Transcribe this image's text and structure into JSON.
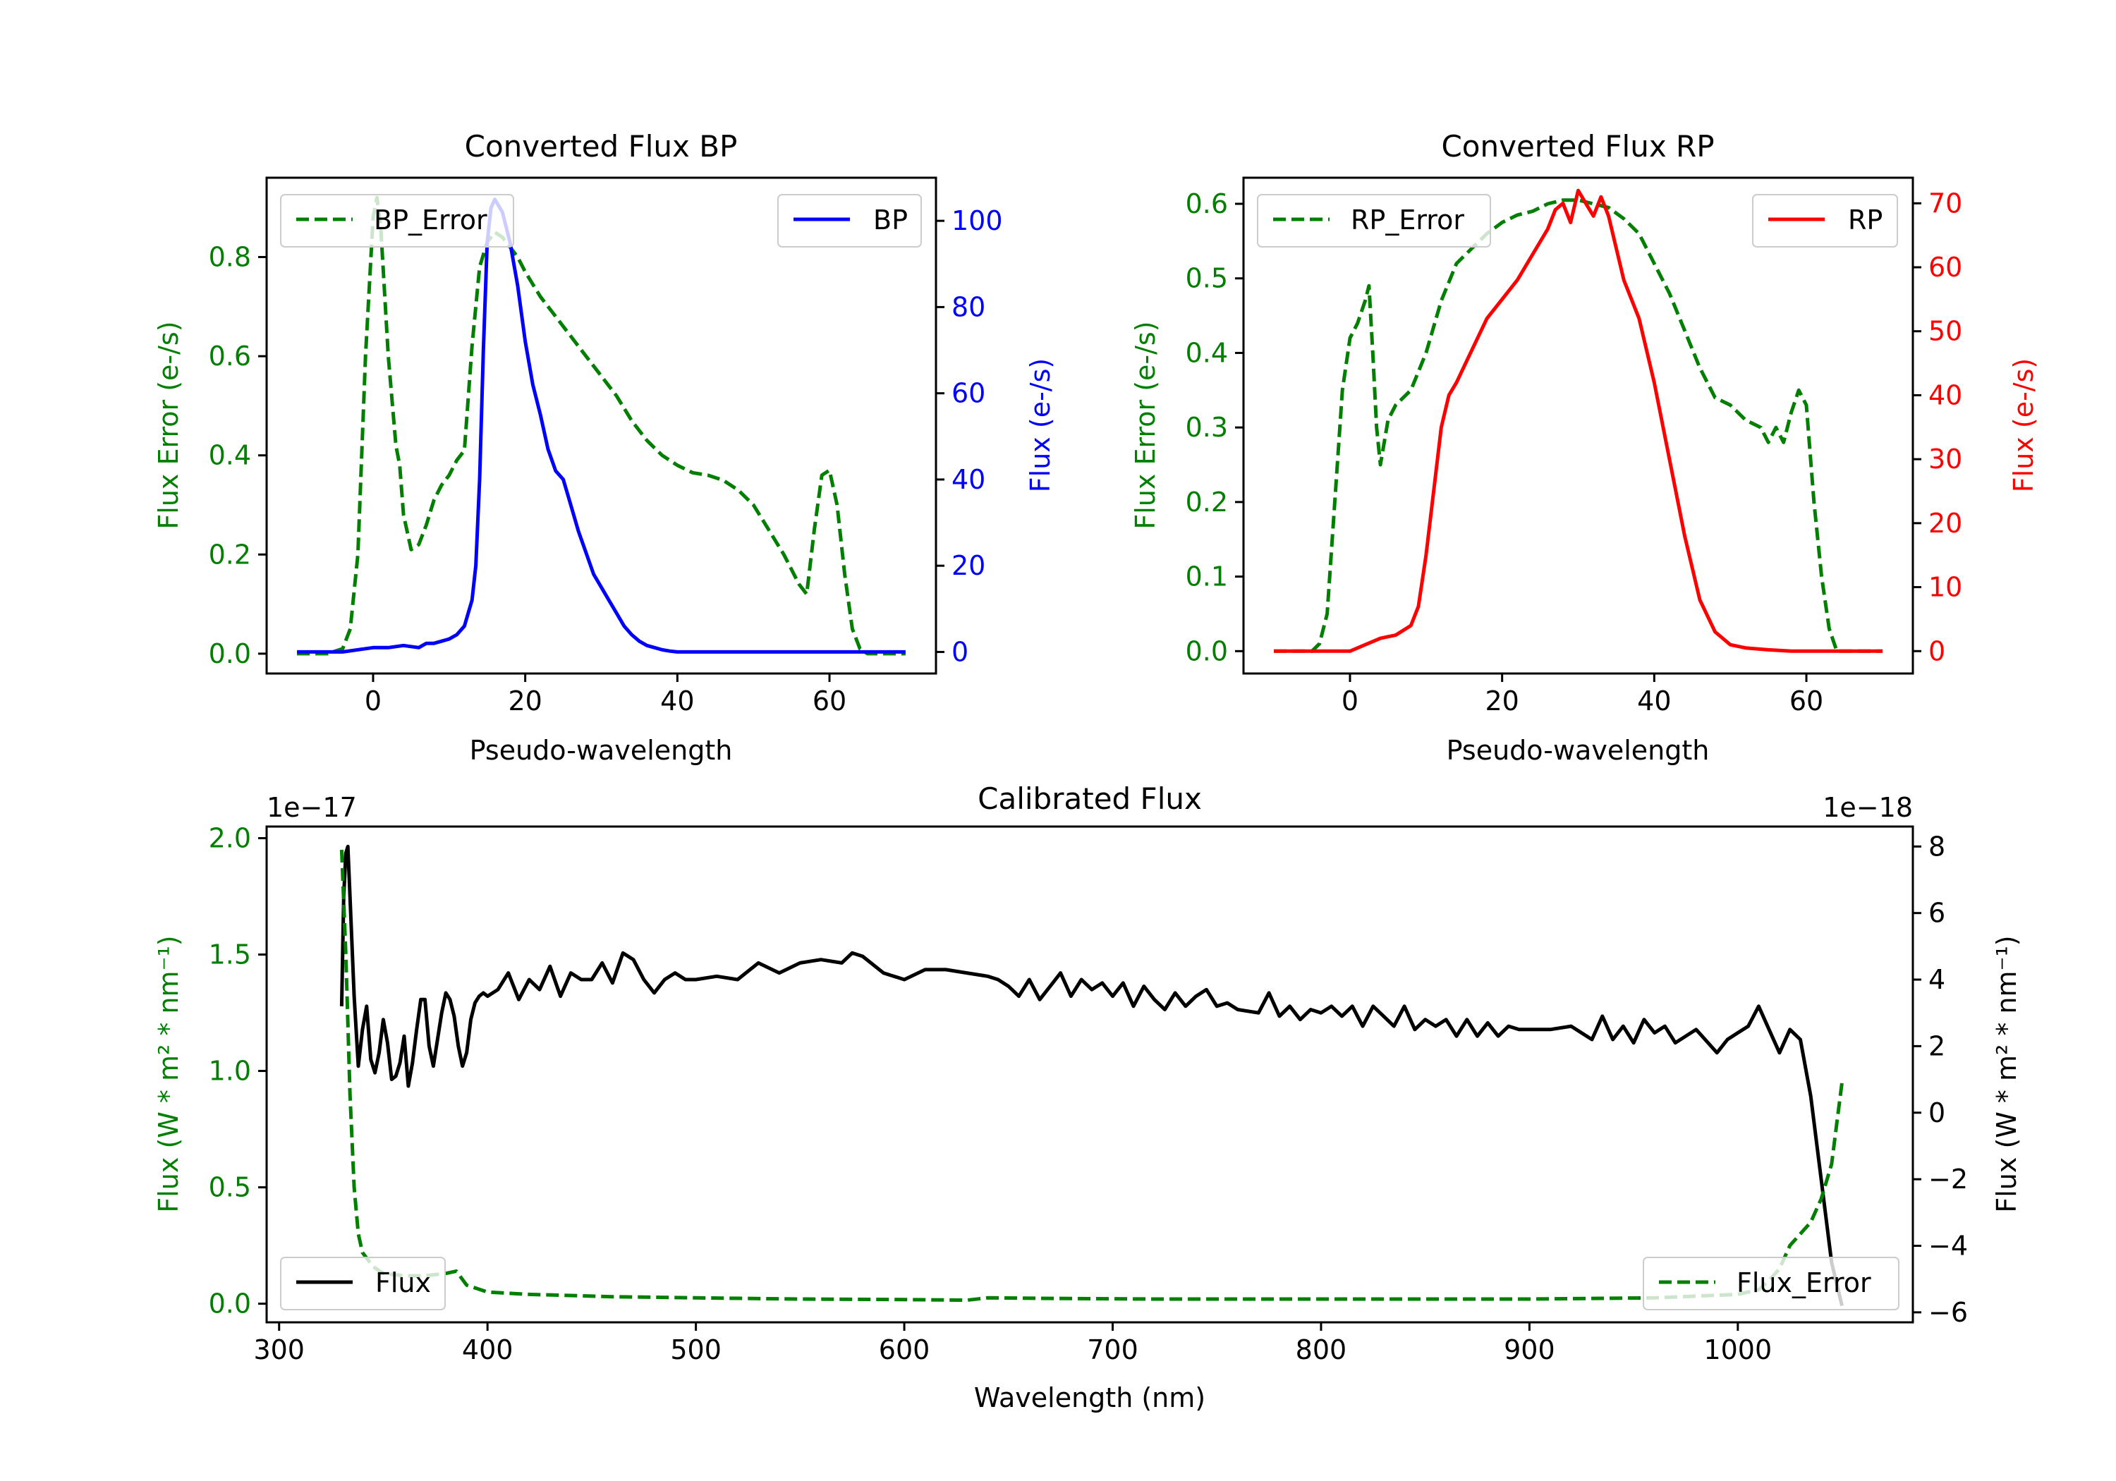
{
  "colors": {
    "green": "#007f00",
    "blue": "#0000ff",
    "red": "#ff0000",
    "black": "#000000"
  },
  "chart_data": [
    {
      "type": "line",
      "title": "Converted Flux BP",
      "xlabel": "Pseudo-wavelength",
      "ylabel_left": "Flux Error (e-/s)",
      "ylabel_right": "Flux (e-/s)",
      "xlim": [
        -14,
        74
      ],
      "ylim_left": [
        -0.04,
        0.96
      ],
      "ylim_right": [
        -5,
        110
      ],
      "xticks": [
        0,
        20,
        40,
        60
      ],
      "yticks_left": [
        0.0,
        0.2,
        0.4,
        0.6,
        0.8
      ],
      "yticks_right": [
        0,
        20,
        40,
        60,
        80,
        100
      ],
      "legend": [
        {
          "label": "BP_Error",
          "position": "top-left"
        },
        {
          "label": "BP",
          "position": "top-right"
        }
      ],
      "series": [
        {
          "name": "BP_Error",
          "axis": "left",
          "style": "dashed",
          "color": "#007f00",
          "x": [
            -10,
            -6,
            -4,
            -3,
            -2,
            -1,
            0,
            0.5,
            1,
            2,
            3,
            3.5,
            4,
            5,
            6,
            7,
            8,
            9,
            10,
            11,
            12,
            13,
            14,
            15,
            16,
            17,
            18,
            19,
            20,
            22,
            24,
            26,
            28,
            30,
            32,
            34,
            36,
            38,
            40,
            42,
            44,
            46,
            48,
            50,
            52,
            54,
            56,
            57,
            58,
            59,
            60,
            61,
            62,
            63,
            64,
            65,
            70
          ],
          "values": [
            0.0,
            0.0,
            0.01,
            0.05,
            0.2,
            0.6,
            0.88,
            0.92,
            0.86,
            0.6,
            0.42,
            0.38,
            0.28,
            0.21,
            0.22,
            0.26,
            0.31,
            0.34,
            0.36,
            0.39,
            0.41,
            0.62,
            0.78,
            0.83,
            0.85,
            0.84,
            0.82,
            0.8,
            0.77,
            0.72,
            0.68,
            0.64,
            0.6,
            0.56,
            0.52,
            0.47,
            0.43,
            0.4,
            0.38,
            0.365,
            0.36,
            0.35,
            0.33,
            0.3,
            0.25,
            0.2,
            0.14,
            0.12,
            0.25,
            0.36,
            0.37,
            0.3,
            0.16,
            0.05,
            0.01,
            0.0,
            0.0
          ]
        },
        {
          "name": "BP",
          "axis": "right",
          "style": "solid",
          "color": "#0000ff",
          "x": [
            -10,
            -4,
            0,
            2,
            4,
            6,
            7,
            8,
            9,
            10,
            11,
            12,
            13,
            13.5,
            14,
            14.5,
            15,
            15.5,
            16,
            17,
            18,
            19,
            20,
            21,
            22,
            23,
            24,
            25,
            26,
            27,
            28,
            29,
            30,
            31,
            32,
            33,
            34,
            35,
            36,
            37,
            38,
            39,
            40,
            42,
            45,
            48,
            52,
            56,
            60,
            65,
            70
          ],
          "values": [
            0,
            0,
            1,
            1,
            1.5,
            1,
            2,
            2,
            2.5,
            3,
            4,
            6,
            12,
            20,
            40,
            70,
            95,
            103,
            105,
            102,
            95,
            85,
            72,
            62,
            55,
            47,
            42,
            40,
            34,
            28,
            23,
            18,
            15,
            12,
            9,
            6,
            4,
            2.5,
            1.5,
            1,
            0.5,
            0.2,
            0,
            0,
            0,
            0,
            0,
            0,
            0,
            0,
            0
          ]
        }
      ]
    },
    {
      "type": "line",
      "title": "Converted Flux RP",
      "xlabel": "Pseudo-wavelength",
      "ylabel_left": "Flux Error (e-/s)",
      "ylabel_right": "Flux (e-/s)",
      "xlim": [
        -14,
        74
      ],
      "ylim_left": [
        -0.03,
        0.635
      ],
      "ylim_right": [
        -3.5,
        74
      ],
      "xticks": [
        0,
        20,
        40,
        60
      ],
      "yticks_left": [
        0.0,
        0.1,
        0.2,
        0.3,
        0.4,
        0.5,
        0.6
      ],
      "yticks_right": [
        0,
        10,
        20,
        30,
        40,
        50,
        60,
        70
      ],
      "legend": [
        {
          "label": "RP_Error",
          "position": "top-left"
        },
        {
          "label": "RP",
          "position": "top-right"
        }
      ],
      "series": [
        {
          "name": "RP_Error",
          "axis": "left",
          "style": "dashed",
          "color": "#007f00",
          "x": [
            -10,
            -5,
            -4,
            -3,
            -2,
            -1,
            0,
            1,
            2,
            2.5,
            3,
            3.5,
            4,
            5,
            6,
            8,
            10,
            12,
            14,
            16,
            18,
            20,
            22,
            24,
            26,
            28,
            30,
            32,
            34,
            36,
            38,
            40,
            42,
            44,
            46,
            48,
            50,
            52,
            54,
            55,
            56,
            57,
            58,
            59,
            60,
            61,
            62,
            63,
            64,
            70
          ],
          "values": [
            0.0,
            0.0,
            0.01,
            0.05,
            0.2,
            0.35,
            0.42,
            0.44,
            0.47,
            0.49,
            0.4,
            0.3,
            0.25,
            0.31,
            0.33,
            0.35,
            0.4,
            0.47,
            0.52,
            0.54,
            0.56,
            0.575,
            0.585,
            0.59,
            0.6,
            0.605,
            0.605,
            0.6,
            0.595,
            0.58,
            0.56,
            0.52,
            0.48,
            0.43,
            0.38,
            0.34,
            0.33,
            0.31,
            0.3,
            0.28,
            0.3,
            0.28,
            0.32,
            0.35,
            0.33,
            0.2,
            0.1,
            0.03,
            0.0,
            0.0
          ]
        },
        {
          "name": "RP",
          "axis": "right",
          "style": "solid",
          "color": "#ff0000",
          "x": [
            -10,
            -4,
            0,
            2,
            4,
            6,
            8,
            9,
            10,
            11,
            12,
            13,
            14,
            16,
            18,
            20,
            22,
            24,
            26,
            27,
            28,
            29,
            30,
            31,
            32,
            33,
            34,
            35,
            36,
            38,
            40,
            42,
            44,
            46,
            48,
            50,
            52,
            55,
            58,
            62,
            70
          ],
          "values": [
            0,
            0,
            0,
            1,
            2,
            2.5,
            4,
            7,
            15,
            25,
            35,
            40,
            42,
            47,
            52,
            55,
            58,
            62,
            66,
            69,
            70,
            67,
            72,
            70,
            68,
            71,
            68,
            63,
            58,
            52,
            42,
            30,
            18,
            8,
            3,
            1,
            0.5,
            0.2,
            0,
            0,
            0
          ]
        }
      ]
    },
    {
      "type": "line",
      "title": "Calibrated Flux",
      "xlabel": "Wavelength (nm)",
      "ylabel_left": "Flux (W * m² * nm⁻¹)",
      "ylabel_right": "Flux (W * m² * nm⁻¹)",
      "offset_left": "1e−17",
      "offset_right": "1e−18",
      "xlim": [
        294,
        1084
      ],
      "ylim_left": [
        -0.08,
        2.05
      ],
      "ylim_right": [
        -6.3,
        8.6
      ],
      "xticks": [
        300,
        400,
        500,
        600,
        700,
        800,
        900,
        1000
      ],
      "yticks_left": [
        0.0,
        0.5,
        1.0,
        1.5,
        2.0
      ],
      "yticks_right": [
        -6,
        -4,
        -2,
        0,
        2,
        4,
        6,
        8
      ],
      "legend": [
        {
          "label": "Flux",
          "position": "lower-left"
        },
        {
          "label": "Flux_Error",
          "position": "lower-right"
        }
      ],
      "series": [
        {
          "name": "Flux",
          "axis": "right",
          "style": "solid",
          "color": "#000000",
          "x": [
            330,
            331,
            332,
            333,
            334,
            336,
            338,
            340,
            342,
            344,
            346,
            348,
            350,
            352,
            354,
            356,
            358,
            360,
            362,
            364,
            366,
            368,
            370,
            372,
            374,
            376,
            378,
            380,
            382,
            384,
            386,
            388,
            390,
            392,
            394,
            396,
            398,
            400,
            405,
            410,
            415,
            420,
            425,
            430,
            435,
            440,
            445,
            450,
            455,
            460,
            465,
            470,
            475,
            480,
            485,
            490,
            495,
            500,
            510,
            520,
            530,
            540,
            550,
            560,
            570,
            575,
            580,
            590,
            600,
            610,
            620,
            630,
            640,
            645,
            650,
            655,
            660,
            665,
            670,
            675,
            680,
            685,
            690,
            695,
            700,
            705,
            710,
            715,
            720,
            725,
            730,
            735,
            740,
            745,
            750,
            755,
            760,
            770,
            775,
            780,
            785,
            790,
            795,
            800,
            805,
            810,
            815,
            820,
            825,
            830,
            835,
            840,
            845,
            850,
            855,
            860,
            865,
            870,
            875,
            880,
            885,
            890,
            895,
            900,
            910,
            920,
            930,
            935,
            940,
            945,
            950,
            955,
            960,
            965,
            970,
            980,
            990,
            995,
            1000,
            1005,
            1010,
            1015,
            1020,
            1025,
            1030,
            1035,
            1040,
            1045,
            1050
          ],
          "values": [
            3.2,
            6.5,
            7.8,
            8.0,
            6.5,
            3.5,
            1.4,
            2.5,
            3.2,
            1.6,
            1.2,
            1.8,
            2.8,
            2.1,
            1.0,
            1.1,
            1.5,
            2.3,
            0.8,
            1.5,
            2.5,
            3.4,
            3.4,
            2.0,
            1.4,
            2.2,
            3.0,
            3.6,
            3.4,
            2.9,
            2.0,
            1.4,
            1.8,
            2.8,
            3.3,
            3.5,
            3.6,
            3.5,
            3.7,
            4.2,
            3.4,
            4.0,
            3.7,
            4.4,
            3.5,
            4.2,
            4.0,
            4.0,
            4.5,
            3.9,
            4.8,
            4.6,
            4.0,
            3.6,
            4.0,
            4.2,
            4.0,
            4.0,
            4.1,
            4.0,
            4.5,
            4.2,
            4.5,
            4.6,
            4.5,
            4.8,
            4.7,
            4.2,
            4.0,
            4.3,
            4.3,
            4.2,
            4.1,
            4.0,
            3.8,
            3.5,
            4.0,
            3.4,
            3.8,
            4.2,
            3.5,
            4.0,
            3.7,
            3.9,
            3.5,
            3.9,
            3.2,
            3.8,
            3.4,
            3.1,
            3.6,
            3.2,
            3.5,
            3.7,
            3.2,
            3.3,
            3.1,
            3.0,
            3.6,
            2.9,
            3.2,
            2.8,
            3.1,
            3.0,
            3.2,
            2.9,
            3.2,
            2.6,
            3.2,
            2.9,
            2.6,
            3.2,
            2.5,
            2.8,
            2.6,
            2.8,
            2.3,
            2.8,
            2.3,
            2.7,
            2.3,
            2.6,
            2.5,
            2.5,
            2.5,
            2.6,
            2.2,
            2.9,
            2.2,
            2.6,
            2.1,
            2.8,
            2.4,
            2.6,
            2.1,
            2.5,
            1.8,
            2.2,
            2.4,
            2.6,
            3.2,
            2.5,
            1.8,
            2.5,
            2.2,
            0.5,
            -2.0,
            -4.5,
            -5.8
          ]
        },
        {
          "name": "Flux_Error",
          "axis": "left",
          "style": "dashed",
          "color": "#007f00",
          "x": [
            330,
            332,
            334,
            336,
            338,
            340,
            345,
            350,
            360,
            370,
            380,
            385,
            390,
            400,
            420,
            440,
            460,
            500,
            550,
            600,
            630,
            640,
            680,
            720,
            800,
            900,
            960,
            1000,
            1010,
            1015,
            1020,
            1025,
            1030,
            1035,
            1040,
            1045,
            1050
          ],
          "values": [
            1.95,
            1.5,
            0.9,
            0.5,
            0.3,
            0.22,
            0.16,
            0.13,
            0.12,
            0.12,
            0.13,
            0.14,
            0.08,
            0.05,
            0.04,
            0.035,
            0.03,
            0.025,
            0.02,
            0.018,
            0.015,
            0.025,
            0.022,
            0.02,
            0.02,
            0.02,
            0.025,
            0.04,
            0.06,
            0.1,
            0.15,
            0.25,
            0.3,
            0.35,
            0.45,
            0.6,
            0.95
          ]
        }
      ]
    }
  ]
}
